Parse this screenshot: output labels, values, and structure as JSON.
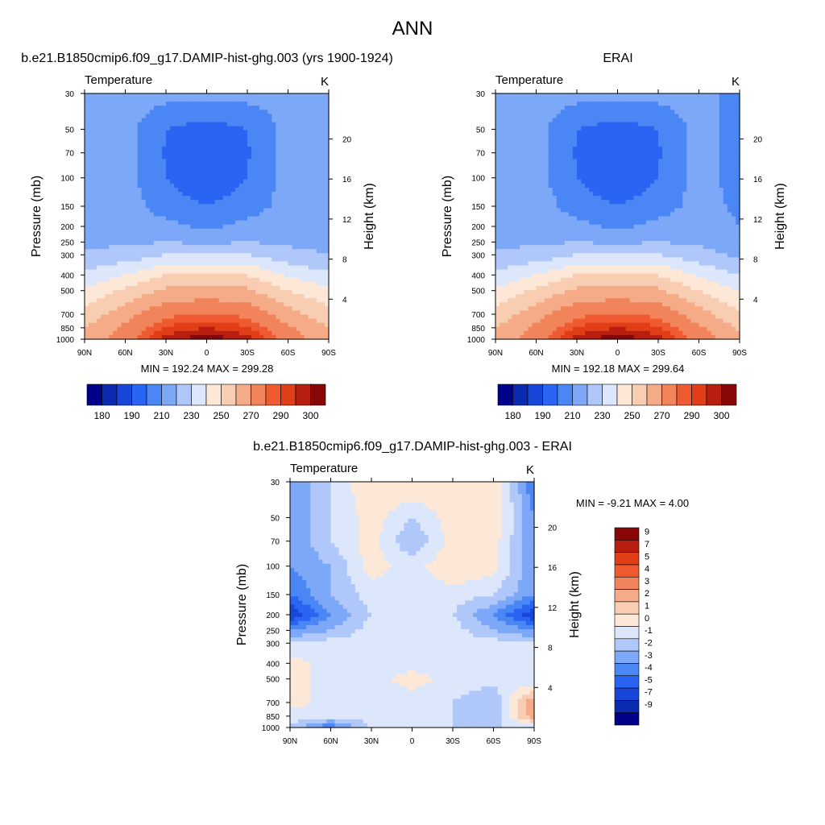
{
  "figure": {
    "title": "ANN",
    "tick_label_xlabels": [
      "90N",
      "60N",
      "30N",
      "0",
      "30S",
      "60S",
      "90S"
    ]
  },
  "colors": {
    "abs_levels": [
      "#00008b",
      "#0a2bb0",
      "#1846d8",
      "#2a64f2",
      "#4a86f4",
      "#7da8f7",
      "#b0c8f9",
      "#dde7fb",
      "#fde8d8",
      "#f9cdb2",
      "#f5ab87",
      "#f2845b",
      "#ef5a30",
      "#e13d17",
      "#b81e10",
      "#880808"
    ],
    "diff_levels": [
      "#00008b",
      "#0a2bb0",
      "#1846d8",
      "#2a64f2",
      "#4a86f4",
      "#7da8f7",
      "#b0c8f9",
      "#dde7fb",
      "#fde8d8",
      "#f9cdb2",
      "#f5ab87",
      "#f2845b",
      "#ef5a30",
      "#e13d17",
      "#b81e10",
      "#880808"
    ]
  },
  "chart_data": [
    {
      "type": "heatmap",
      "id": "model",
      "title": "b.e21.B1850cmip6.f09_g17.DAMIP-hist-ghg.003 (yrs 1900-1924)",
      "subtitle_left": "Temperature",
      "subtitle_right": "K",
      "ylabel": "Pressure (mb)",
      "ylabel_right": "Height (km)",
      "yticks": [
        30,
        50,
        70,
        100,
        150,
        200,
        250,
        300,
        400,
        500,
        700,
        850,
        1000
      ],
      "yticks_right": [
        4,
        8,
        12,
        16,
        20
      ],
      "xticks": [
        "90N",
        "60N",
        "30N",
        "0",
        "30S",
        "60S",
        "90S"
      ],
      "stats": "MIN = 192.24  MAX = 299.28",
      "colorbar_labels": [
        "180",
        "190",
        "210",
        "230",
        "250",
        "270",
        "290",
        "300"
      ],
      "lat": [
        90,
        60,
        30,
        0,
        -30,
        -60,
        -90
      ],
      "pressure": [
        30,
        50,
        70,
        100,
        150,
        200,
        250,
        300,
        400,
        500,
        700,
        850,
        1000
      ],
      "values": [
        [
          214,
          214,
          214,
          214,
          214,
          213,
          210
        ],
        [
          214,
          214,
          200,
          195,
          200,
          214,
          210
        ],
        [
          214,
          214,
          199,
          192,
          199,
          214,
          210
        ],
        [
          214,
          214,
          200,
          192,
          200,
          214,
          210
        ],
        [
          215,
          215,
          205,
          200,
          205,
          214,
          212
        ],
        [
          216,
          216,
          213,
          208,
          213,
          216,
          214
        ],
        [
          218,
          218,
          220,
          218,
          220,
          218,
          216
        ],
        [
          222,
          224,
          230,
          230,
          230,
          224,
          220
        ],
        [
          232,
          240,
          250,
          252,
          250,
          238,
          232
        ],
        [
          242,
          252,
          262,
          264,
          262,
          250,
          242
        ],
        [
          254,
          266,
          278,
          280,
          278,
          264,
          254
        ],
        [
          260,
          272,
          286,
          290,
          286,
          272,
          260
        ],
        [
          264,
          276,
          292,
          299,
          292,
          276,
          264
        ]
      ]
    },
    {
      "type": "heatmap",
      "id": "obs",
      "title": "ERAI",
      "subtitle_left": "Temperature",
      "subtitle_right": "K",
      "ylabel": "Pressure (mb)",
      "ylabel_right": "Height (km)",
      "yticks": [
        30,
        50,
        70,
        100,
        150,
        200,
        250,
        300,
        400,
        500,
        700,
        850,
        1000
      ],
      "yticks_right": [
        4,
        8,
        12,
        16,
        20
      ],
      "xticks": [
        "90N",
        "60N",
        "30N",
        "0",
        "30S",
        "60S",
        "90S"
      ],
      "stats": "MIN = 192.18  MAX = 299.64",
      "colorbar_labels": [
        "180",
        "190",
        "210",
        "230",
        "250",
        "270",
        "290",
        "300"
      ],
      "lat": [
        90,
        60,
        30,
        0,
        -30,
        -60,
        -90
      ],
      "pressure": [
        30,
        50,
        70,
        100,
        150,
        200,
        250,
        300,
        400,
        500,
        700,
        850,
        1000
      ],
      "values": [
        [
          214,
          214,
          214,
          214,
          214,
          214,
          206
        ],
        [
          214,
          214,
          200,
          195,
          200,
          214,
          206
        ],
        [
          214,
          214,
          199,
          192,
          199,
          214,
          206
        ],
        [
          216,
          214,
          200,
          192,
          200,
          214,
          206
        ],
        [
          220,
          216,
          205,
          200,
          205,
          214,
          208
        ],
        [
          218,
          216,
          213,
          208,
          213,
          216,
          210
        ],
        [
          218,
          218,
          220,
          218,
          220,
          218,
          214
        ],
        [
          222,
          224,
          230,
          230,
          230,
          224,
          218
        ],
        [
          232,
          240,
          250,
          252,
          250,
          238,
          230
        ],
        [
          242,
          252,
          262,
          264,
          262,
          250,
          240
        ],
        [
          254,
          266,
          278,
          280,
          278,
          264,
          252
        ],
        [
          260,
          272,
          286,
          290,
          286,
          272,
          258
        ],
        [
          264,
          276,
          292,
          299,
          292,
          276,
          262
        ]
      ]
    },
    {
      "type": "heatmap",
      "id": "diff",
      "title": "b.e21.B1850cmip6.f09_g17.DAMIP-hist-ghg.003 - ERAI",
      "subtitle_left": "Temperature",
      "subtitle_right": "K",
      "ylabel": "Pressure (mb)",
      "ylabel_right": "Height (km)",
      "yticks": [
        30,
        50,
        70,
        100,
        150,
        200,
        250,
        300,
        400,
        500,
        700,
        850,
        1000
      ],
      "yticks_right": [
        4,
        8,
        12,
        16,
        20
      ],
      "xticks": [
        "90N",
        "60N",
        "30N",
        "0",
        "30S",
        "60S",
        "90S"
      ],
      "stats": "MIN =  -9.21  MAX =   4.00",
      "colorbar_labels": [
        "9",
        "7",
        "5",
        "4",
        "3",
        "2",
        "1",
        "0",
        "-1",
        "-2",
        "-3",
        "-4",
        "-5",
        "-7",
        "-9"
      ],
      "lat": [
        90,
        60,
        30,
        0,
        -30,
        -60,
        -90
      ],
      "pressure": [
        30,
        50,
        70,
        100,
        150,
        200,
        250,
        300,
        400,
        500,
        700,
        850,
        1000
      ],
      "values": [
        [
          -3,
          -1,
          1,
          1,
          1,
          1,
          -4
        ],
        [
          -3,
          -1,
          0.5,
          -1,
          0.5,
          1,
          -3
        ],
        [
          -3,
          -1,
          0.5,
          -2,
          0.5,
          0.5,
          -3
        ],
        [
          -3,
          -2,
          0.5,
          -0.5,
          1,
          0.5,
          -3
        ],
        [
          -4,
          -2,
          -0.5,
          -0.5,
          -0.5,
          -1,
          -3
        ],
        [
          -6,
          -3,
          -1,
          -0.5,
          -1,
          -3,
          -6
        ],
        [
          -3,
          -2,
          -0.5,
          -0.5,
          -0.5,
          -2,
          -3
        ],
        [
          -1,
          -0.5,
          -0.5,
          -0.5,
          -0.5,
          -0.5,
          -1
        ],
        [
          0.5,
          -0.5,
          -0.5,
          -0.5,
          -0.5,
          -0.5,
          -0.5
        ],
        [
          0.5,
          -0.5,
          -0.5,
          0.5,
          -0.5,
          -0.5,
          -1
        ],
        [
          0.5,
          -0.5,
          -1,
          -0.5,
          -1,
          -2,
          3
        ],
        [
          -0.5,
          -0.5,
          -1,
          -0.5,
          -1,
          -2,
          3
        ],
        [
          -1,
          -4,
          -0.5,
          -0.5,
          -1,
          -1,
          -1
        ]
      ]
    }
  ]
}
